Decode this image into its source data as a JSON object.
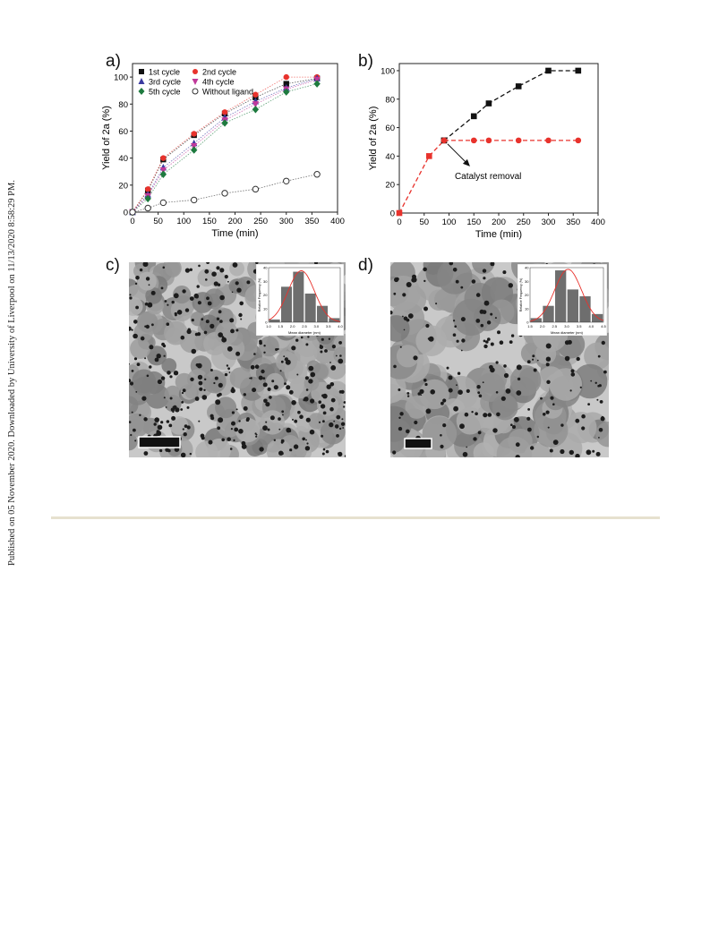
{
  "side_note": "Published on 05 November 2020. Downloaded by University of Liverpool on 11/13/2020 8:58:29 PM.",
  "panel_labels": [
    "a)",
    "b)",
    "c)",
    "d)"
  ],
  "chart_data": [
    {
      "panel": "a)",
      "type": "scatter",
      "xlabel": "Time (min)",
      "ylabel": "Yield of 2a (%)",
      "xlim": [
        0,
        400
      ],
      "ylim": [
        0,
        110
      ],
      "xticks": [
        "0",
        "50",
        "100",
        "150",
        "200",
        "250",
        "300",
        "350",
        "400"
      ],
      "yticks": [
        "0",
        "20",
        "40",
        "60",
        "80",
        "100"
      ],
      "grid": false,
      "legend_position": "top-left",
      "x": [
        0,
        30,
        60,
        120,
        180,
        240,
        300,
        360
      ],
      "series": [
        {
          "name": "1st cycle",
          "marker": "square",
          "color": "#111111",
          "values": [
            0,
            16,
            39,
            57,
            73,
            85,
            95,
            99
          ]
        },
        {
          "name": "2nd cycle",
          "marker": "circle",
          "color": "#e8322c",
          "values": [
            0,
            17,
            40,
            58,
            74,
            87,
            100,
            100
          ]
        },
        {
          "name": "3rd cycle",
          "marker": "triangle-up",
          "color": "#3a3aa0",
          "values": [
            0,
            13,
            33,
            51,
            70,
            82,
            92,
            99
          ]
        },
        {
          "name": "4th cycle",
          "marker": "triangle-down",
          "color": "#c0399a",
          "values": [
            0,
            12,
            31,
            49,
            68,
            80,
            91,
            98
          ]
        },
        {
          "name": "5th cycle",
          "marker": "diamond",
          "color": "#1d7a3e",
          "values": [
            0,
            10,
            28,
            46,
            66,
            76,
            89,
            95
          ]
        },
        {
          "name": "Without ligand",
          "marker": "open-circle",
          "color": "#333333",
          "values": [
            0,
            3,
            7,
            9,
            14,
            17,
            23,
            28
          ]
        }
      ]
    },
    {
      "panel": "b)",
      "type": "line",
      "xlabel": "Time (min)",
      "ylabel": "Yield of 2a (%)",
      "xlim": [
        0,
        400
      ],
      "ylim": [
        0,
        105
      ],
      "xticks": [
        "0",
        "50",
        "100",
        "150",
        "200",
        "250",
        "300",
        "350",
        "400"
      ],
      "yticks": [
        "0",
        "20",
        "40",
        "60",
        "80",
        "100"
      ],
      "grid": false,
      "annotation": "Catalyst removal",
      "series": [
        {
          "marker": "square",
          "color": "#e8322c",
          "x": [
            0,
            60,
            90
          ],
          "values": [
            0,
            40,
            51
          ]
        },
        {
          "marker": "square",
          "color": "#111111",
          "x": [
            90,
            150,
            180,
            240,
            300,
            360
          ],
          "values": [
            51,
            68,
            77,
            89,
            100,
            100
          ]
        },
        {
          "marker": "circle",
          "color": "#e8322c",
          "x": [
            90,
            150,
            180,
            240,
            300,
            360
          ],
          "values": [
            51,
            51,
            51,
            51,
            51,
            51
          ]
        }
      ]
    },
    {
      "panel": "c) inset",
      "type": "bar",
      "xlabel": "Mean diameter (nm)",
      "ylabel": "Relative Frequency (%)",
      "xticks": [
        "1.0",
        "1.5",
        "2.0",
        "2.5",
        "3.0",
        "3.5",
        "4.0"
      ],
      "yticks": [
        "0",
        "10",
        "20",
        "30",
        "40"
      ],
      "ylim": [
        0,
        40
      ],
      "x": [
        1.25,
        1.75,
        2.25,
        2.75,
        3.25,
        3.75
      ],
      "values": [
        2,
        26,
        37,
        21,
        12,
        3
      ]
    },
    {
      "panel": "d) inset",
      "type": "bar",
      "xlabel": "Mean diameter (nm)",
      "ylabel": "Relative Frequency (%)",
      "xticks": [
        "1.5",
        "2.0",
        "2.5",
        "3.0",
        "3.5",
        "4.0",
        "4.5"
      ],
      "yticks": [
        "0",
        "10",
        "20",
        "30",
        "40"
      ],
      "ylim": [
        0,
        40
      ],
      "x": [
        1.75,
        2.25,
        2.75,
        3.25,
        3.75,
        4.25
      ],
      "values": [
        3,
        12,
        38,
        24,
        19,
        6
      ]
    }
  ]
}
